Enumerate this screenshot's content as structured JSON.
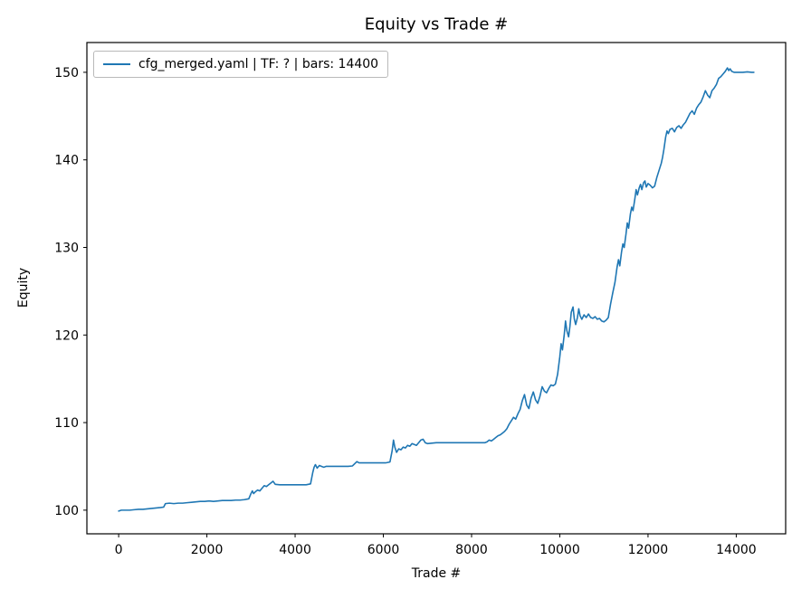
{
  "figure": {
    "background": "#ffffff"
  },
  "chart_data": {
    "type": "line",
    "title": "Equity vs Trade #",
    "xlabel": "Trade #",
    "ylabel": "Equity",
    "legend": {
      "label": "cfg_merged.yaml | TF: ? | bars: 14400",
      "position": "upper left"
    },
    "series_color": "#1f77b4",
    "axis_color": "#000000",
    "grid": false,
    "xlim": [
      -720,
      15120
    ],
    "ylim": [
      97.3,
      153.4
    ],
    "xticks": [
      0,
      2000,
      4000,
      6000,
      8000,
      10000,
      12000,
      14000
    ],
    "yticks": [
      100,
      110,
      120,
      130,
      140,
      150
    ],
    "points": [
      [
        0,
        99.9
      ],
      [
        60,
        100
      ],
      [
        150,
        100
      ],
      [
        250,
        100
      ],
      [
        350,
        100.05
      ],
      [
        450,
        100.1
      ],
      [
        550,
        100.1
      ],
      [
        650,
        100.15
      ],
      [
        750,
        100.2
      ],
      [
        850,
        100.25
      ],
      [
        950,
        100.3
      ],
      [
        1020,
        100.35
      ],
      [
        1060,
        100.75
      ],
      [
        1150,
        100.8
      ],
      [
        1250,
        100.75
      ],
      [
        1350,
        100.8
      ],
      [
        1450,
        100.8
      ],
      [
        1550,
        100.85
      ],
      [
        1650,
        100.9
      ],
      [
        1750,
        100.95
      ],
      [
        1850,
        101
      ],
      [
        1950,
        101
      ],
      [
        2050,
        101.05
      ],
      [
        2150,
        101
      ],
      [
        2250,
        101.05
      ],
      [
        2350,
        101.1
      ],
      [
        2450,
        101.1
      ],
      [
        2550,
        101.1
      ],
      [
        2650,
        101.15
      ],
      [
        2750,
        101.15
      ],
      [
        2850,
        101.2
      ],
      [
        2950,
        101.3
      ],
      [
        3000,
        101.9
      ],
      [
        3030,
        102.2
      ],
      [
        3060,
        101.9
      ],
      [
        3100,
        102.1
      ],
      [
        3150,
        102.3
      ],
      [
        3200,
        102.2
      ],
      [
        3250,
        102.5
      ],
      [
        3300,
        102.8
      ],
      [
        3350,
        102.7
      ],
      [
        3400,
        102.9
      ],
      [
        3450,
        103.1
      ],
      [
        3500,
        103.3
      ],
      [
        3550,
        102.95
      ],
      [
        3650,
        102.9
      ],
      [
        3750,
        102.9
      ],
      [
        3850,
        102.9
      ],
      [
        3950,
        102.9
      ],
      [
        4050,
        102.9
      ],
      [
        4150,
        102.9
      ],
      [
        4250,
        102.9
      ],
      [
        4350,
        103
      ],
      [
        4400,
        104.3
      ],
      [
        4430,
        104.9
      ],
      [
        4460,
        105.2
      ],
      [
        4500,
        104.8
      ],
      [
        4550,
        105.1
      ],
      [
        4600,
        105
      ],
      [
        4650,
        104.9
      ],
      [
        4700,
        105
      ],
      [
        4800,
        105
      ],
      [
        4900,
        105
      ],
      [
        5000,
        105
      ],
      [
        5100,
        105
      ],
      [
        5200,
        105
      ],
      [
        5300,
        105.05
      ],
      [
        5350,
        105.3
      ],
      [
        5400,
        105.55
      ],
      [
        5450,
        105.4
      ],
      [
        5550,
        105.4
      ],
      [
        5650,
        105.4
      ],
      [
        5750,
        105.4
      ],
      [
        5850,
        105.4
      ],
      [
        5950,
        105.4
      ],
      [
        6050,
        105.4
      ],
      [
        6150,
        105.5
      ],
      [
        6200,
        106.8
      ],
      [
        6230,
        108
      ],
      [
        6260,
        107.2
      ],
      [
        6300,
        106.6
      ],
      [
        6350,
        107
      ],
      [
        6400,
        106.9
      ],
      [
        6450,
        107.2
      ],
      [
        6500,
        107.1
      ],
      [
        6550,
        107.4
      ],
      [
        6600,
        107.3
      ],
      [
        6650,
        107.6
      ],
      [
        6700,
        107.5
      ],
      [
        6750,
        107.4
      ],
      [
        6800,
        107.7
      ],
      [
        6850,
        108
      ],
      [
        6900,
        108.1
      ],
      [
        6950,
        107.7
      ],
      [
        7000,
        107.6
      ],
      [
        7100,
        107.65
      ],
      [
        7200,
        107.7
      ],
      [
        7300,
        107.7
      ],
      [
        7400,
        107.7
      ],
      [
        7500,
        107.7
      ],
      [
        7600,
        107.7
      ],
      [
        7700,
        107.7
      ],
      [
        7800,
        107.7
      ],
      [
        7900,
        107.7
      ],
      [
        8000,
        107.7
      ],
      [
        8100,
        107.7
      ],
      [
        8200,
        107.7
      ],
      [
        8300,
        107.7
      ],
      [
        8350,
        107.8
      ],
      [
        8400,
        108
      ],
      [
        8450,
        107.9
      ],
      [
        8500,
        108.1
      ],
      [
        8550,
        108.3
      ],
      [
        8600,
        108.5
      ],
      [
        8650,
        108.6
      ],
      [
        8700,
        108.8
      ],
      [
        8750,
        109
      ],
      [
        8800,
        109.3
      ],
      [
        8850,
        109.8
      ],
      [
        8900,
        110.2
      ],
      [
        8950,
        110.6
      ],
      [
        9000,
        110.4
      ],
      [
        9050,
        111
      ],
      [
        9100,
        111.5
      ],
      [
        9150,
        112.5
      ],
      [
        9200,
        113.2
      ],
      [
        9250,
        112
      ],
      [
        9300,
        111.6
      ],
      [
        9350,
        112.8
      ],
      [
        9400,
        113.5
      ],
      [
        9450,
        112.6
      ],
      [
        9500,
        112.2
      ],
      [
        9550,
        113
      ],
      [
        9600,
        114.1
      ],
      [
        9650,
        113.6
      ],
      [
        9700,
        113.4
      ],
      [
        9750,
        113.9
      ],
      [
        9800,
        114.3
      ],
      [
        9850,
        114.2
      ],
      [
        9900,
        114.4
      ],
      [
        9950,
        115.5
      ],
      [
        10000,
        117.5
      ],
      [
        10030,
        119
      ],
      [
        10060,
        118.3
      ],
      [
        10100,
        120
      ],
      [
        10130,
        121.6
      ],
      [
        10160,
        120.5
      ],
      [
        10200,
        119.8
      ],
      [
        10230,
        121
      ],
      [
        10260,
        122.6
      ],
      [
        10300,
        123.2
      ],
      [
        10330,
        121.8
      ],
      [
        10360,
        121.2
      ],
      [
        10400,
        122
      ],
      [
        10430,
        123
      ],
      [
        10460,
        122.2
      ],
      [
        10500,
        121.8
      ],
      [
        10550,
        122.3
      ],
      [
        10600,
        122
      ],
      [
        10650,
        122.4
      ],
      [
        10700,
        122
      ],
      [
        10750,
        121.9
      ],
      [
        10800,
        122.1
      ],
      [
        10850,
        121.8
      ],
      [
        10900,
        121.9
      ],
      [
        10950,
        121.6
      ],
      [
        11000,
        121.5
      ],
      [
        11050,
        121.7
      ],
      [
        11100,
        122
      ],
      [
        11150,
        123.5
      ],
      [
        11200,
        124.8
      ],
      [
        11250,
        126
      ],
      [
        11300,
        127.8
      ],
      [
        11330,
        128.6
      ],
      [
        11360,
        127.9
      ],
      [
        11400,
        129.5
      ],
      [
        11430,
        130.4
      ],
      [
        11460,
        130
      ],
      [
        11500,
        131.5
      ],
      [
        11530,
        132.8
      ],
      [
        11560,
        132.2
      ],
      [
        11600,
        133.8
      ],
      [
        11630,
        134.6
      ],
      [
        11660,
        134.2
      ],
      [
        11700,
        135.5
      ],
      [
        11730,
        136.6
      ],
      [
        11760,
        136
      ],
      [
        11800,
        136.8
      ],
      [
        11830,
        137.2
      ],
      [
        11860,
        136.6
      ],
      [
        11900,
        137.4
      ],
      [
        11930,
        137.6
      ],
      [
        11960,
        136.9
      ],
      [
        12000,
        137.3
      ],
      [
        12050,
        137.1
      ],
      [
        12100,
        136.8
      ],
      [
        12150,
        137
      ],
      [
        12200,
        138
      ],
      [
        12250,
        138.8
      ],
      [
        12300,
        139.6
      ],
      [
        12330,
        140.3
      ],
      [
        12360,
        141.2
      ],
      [
        12400,
        142.6
      ],
      [
        12430,
        143.3
      ],
      [
        12460,
        143
      ],
      [
        12500,
        143.5
      ],
      [
        12550,
        143.6
      ],
      [
        12600,
        143.2
      ],
      [
        12650,
        143.7
      ],
      [
        12700,
        143.9
      ],
      [
        12750,
        143.6
      ],
      [
        12800,
        144
      ],
      [
        12850,
        144.3
      ],
      [
        12900,
        144.8
      ],
      [
        12950,
        145.3
      ],
      [
        13000,
        145.6
      ],
      [
        13050,
        145.2
      ],
      [
        13100,
        145.9
      ],
      [
        13150,
        146.3
      ],
      [
        13200,
        146.6
      ],
      [
        13250,
        147.2
      ],
      [
        13300,
        147.9
      ],
      [
        13350,
        147.4
      ],
      [
        13400,
        147.1
      ],
      [
        13450,
        147.9
      ],
      [
        13500,
        148.2
      ],
      [
        13550,
        148.6
      ],
      [
        13600,
        149.3
      ],
      [
        13650,
        149.5
      ],
      [
        13700,
        149.8
      ],
      [
        13750,
        150.1
      ],
      [
        13800,
        150.5
      ],
      [
        13830,
        150.2
      ],
      [
        13860,
        150.4
      ],
      [
        13900,
        150.1
      ],
      [
        13950,
        150
      ],
      [
        14050,
        150
      ],
      [
        14150,
        150
      ],
      [
        14250,
        150.05
      ],
      [
        14350,
        150
      ],
      [
        14400,
        150
      ]
    ]
  }
}
